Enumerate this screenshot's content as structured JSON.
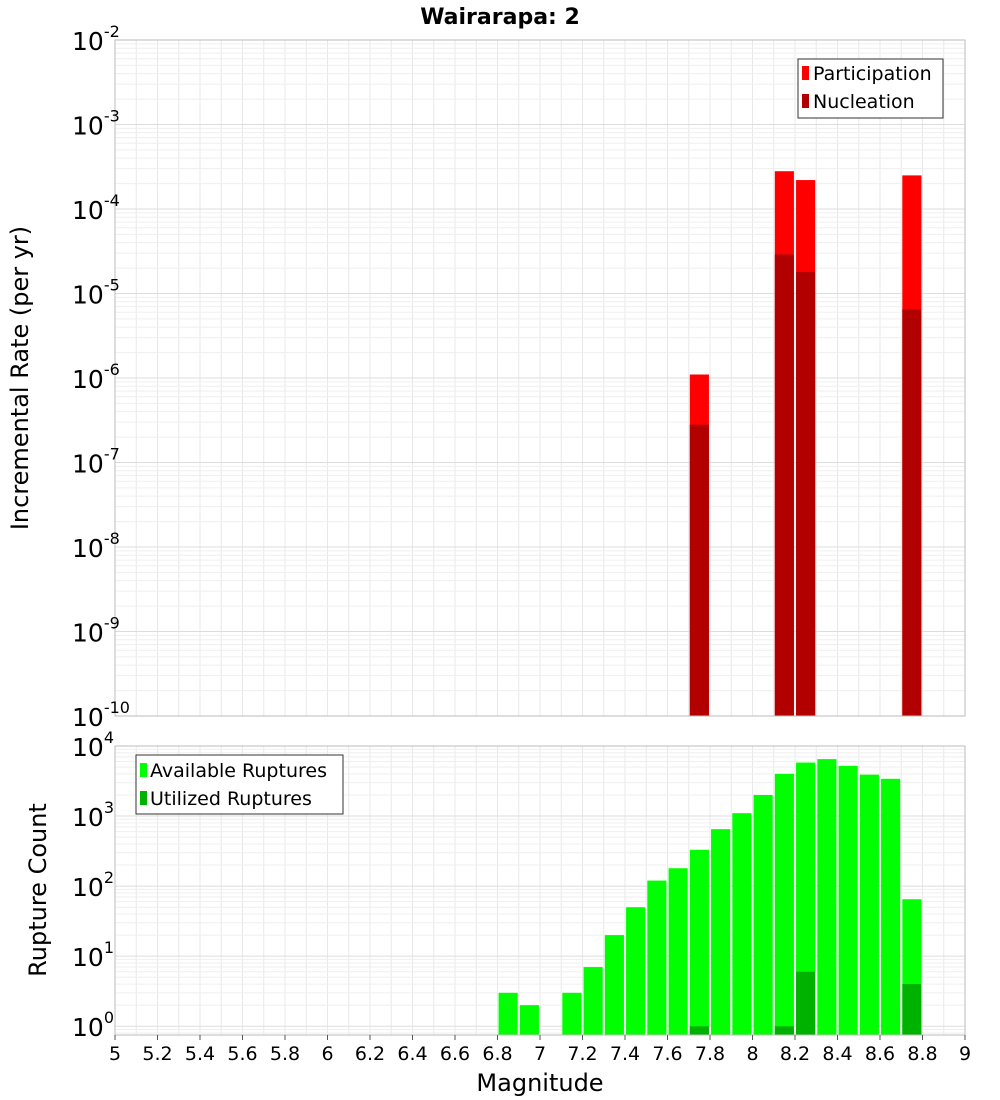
{
  "title": "Wairarapa: 2",
  "colors": {
    "participation": "#ff0000",
    "nucleation": "#b20000",
    "available": "#00ff00",
    "utilized": "#00b200",
    "grid": "#e8e8e8",
    "frame": "#bbbbbb"
  },
  "chart_data": [
    {
      "type": "bar",
      "title": "Wairarapa: 2",
      "xlabel": "",
      "ylabel": "Incremental Rate (per yr)",
      "yscale": "log",
      "xlim": [
        5,
        9
      ],
      "ylim": [
        1e-10,
        0.01
      ],
      "grid": true,
      "legend_position": "top-right",
      "bar_width": 0.09,
      "y_tick_exponents": [
        "-2",
        "-3",
        "-4",
        "-5",
        "-6",
        "-7",
        "-8",
        "-9",
        "-10"
      ],
      "series": [
        {
          "name": "Participation",
          "color": "#ff0000",
          "x": [
            7.75,
            8.15,
            8.25,
            8.75
          ],
          "values": [
            1.1e-06,
            0.00028,
            0.00022,
            0.00025
          ]
        },
        {
          "name": "Nucleation",
          "color": "#b20000",
          "x": [
            7.75,
            8.15,
            8.25,
            8.75
          ],
          "values": [
            2.8e-07,
            2.9e-05,
            1.8e-05,
            6.5e-06
          ]
        }
      ]
    },
    {
      "type": "bar",
      "title": "",
      "xlabel": "Magnitude",
      "ylabel": "Rupture Count",
      "yscale": "log",
      "xlim": [
        5,
        9
      ],
      "ylim": [
        0.75,
        10000
      ],
      "grid": true,
      "legend_position": "top-left",
      "bar_width": 0.09,
      "x_ticks": [
        "5",
        "5.2",
        "5.4",
        "5.6",
        "5.8",
        "6",
        "6.2",
        "6.4",
        "6.6",
        "6.8",
        "7",
        "7.2",
        "7.4",
        "7.6",
        "7.8",
        "8",
        "8.2",
        "8.4",
        "8.6",
        "8.8",
        "9"
      ],
      "y_tick_exponents": [
        "4",
        "3",
        "2",
        "1",
        "0"
      ],
      "series": [
        {
          "name": "Available Ruptures",
          "color": "#00ff00",
          "x": [
            6.85,
            6.95,
            7.15,
            7.25,
            7.35,
            7.45,
            7.55,
            7.65,
            7.75,
            7.85,
            7.95,
            8.05,
            8.15,
            8.25,
            8.35,
            8.45,
            8.55,
            8.65,
            8.75
          ],
          "values": [
            3,
            2,
            3,
            7,
            20,
            50,
            120,
            180,
            330,
            650,
            1100,
            2000,
            4000,
            5800,
            6500,
            5200,
            3900,
            3400,
            65
          ]
        },
        {
          "name": "Utilized Ruptures",
          "color": "#00b200",
          "x": [
            7.75,
            8.15,
            8.25,
            8.75
          ],
          "values": [
            1,
            1,
            6,
            4
          ]
        }
      ]
    }
  ]
}
